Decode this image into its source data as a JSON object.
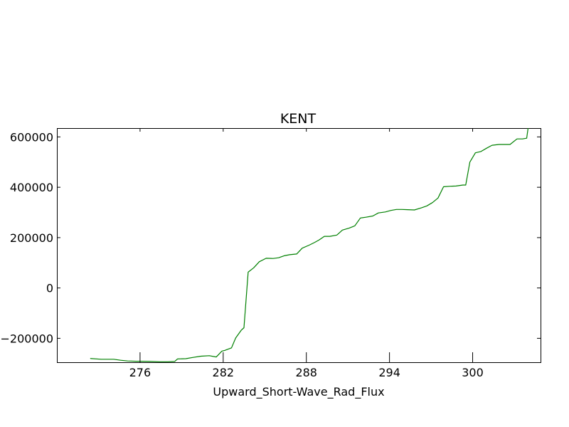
{
  "chart_data": {
    "type": "line",
    "title": "KENT",
    "xlabel": "Upward_Short-Wave_Rad_Flux",
    "ylabel": "",
    "xlim": [
      270,
      304.9
    ],
    "ylim": [
      -295000,
      635000
    ],
    "x_ticks": [
      276,
      282,
      288,
      294,
      300
    ],
    "x_tick_labels": [
      "276",
      "282",
      "288",
      "294",
      "300"
    ],
    "y_ticks": [
      -200000,
      0,
      200000,
      400000,
      600000
    ],
    "y_tick_labels": [
      "−200000",
      "0",
      "200000",
      "400000",
      "600000"
    ],
    "grid": false,
    "line_color": "#008000",
    "series": [
      {
        "x": [
          272.4,
          273.2,
          274.1,
          274.6,
          275.1,
          275.7,
          276.2,
          276.8,
          277.4,
          278.0,
          278.5,
          278.7,
          279.3,
          279.8,
          280.4,
          281.0,
          281.5,
          281.9,
          282.1,
          282.6,
          282.9,
          283.3,
          283.5,
          283.8,
          284.2,
          284.6,
          285.1,
          285.6,
          286.0,
          286.4,
          286.8,
          287.3,
          287.7,
          288.2,
          288.6,
          288.9,
          289.3,
          289.7,
          290.2,
          290.6,
          291.1,
          291.5,
          291.9,
          292.3,
          292.8,
          293.2,
          293.7,
          294.1,
          294.5,
          294.9,
          295.3,
          295.8,
          296.3,
          296.7,
          297.1,
          297.5,
          297.9,
          298.4,
          298.8,
          299.3,
          299.5,
          299.8,
          300.2,
          300.6,
          301.0,
          301.4,
          301.9,
          302.3,
          302.7,
          303.2,
          303.6,
          303.9,
          304.0
        ],
        "y": [
          -280000,
          -283000,
          -283000,
          -287000,
          -290000,
          -291000,
          -291000,
          -292000,
          -293000,
          -293000,
          -292000,
          -282000,
          -281000,
          -276000,
          -271000,
          -269000,
          -274000,
          -251000,
          -248000,
          -238000,
          -199000,
          -168000,
          -158000,
          63000,
          80000,
          104000,
          118000,
          117000,
          120000,
          128000,
          132000,
          135000,
          158000,
          170000,
          181000,
          190000,
          205000,
          205000,
          210000,
          230000,
          238000,
          247000,
          278000,
          281000,
          286000,
          298000,
          302000,
          308000,
          312000,
          312000,
          311000,
          310000,
          318000,
          326000,
          339000,
          357000,
          402000,
          404000,
          405000,
          409000,
          409000,
          500000,
          537000,
          542000,
          555000,
          567000,
          570000,
          570000,
          570000,
          592000,
          592000,
          595000,
          635000
        ]
      }
    ]
  }
}
